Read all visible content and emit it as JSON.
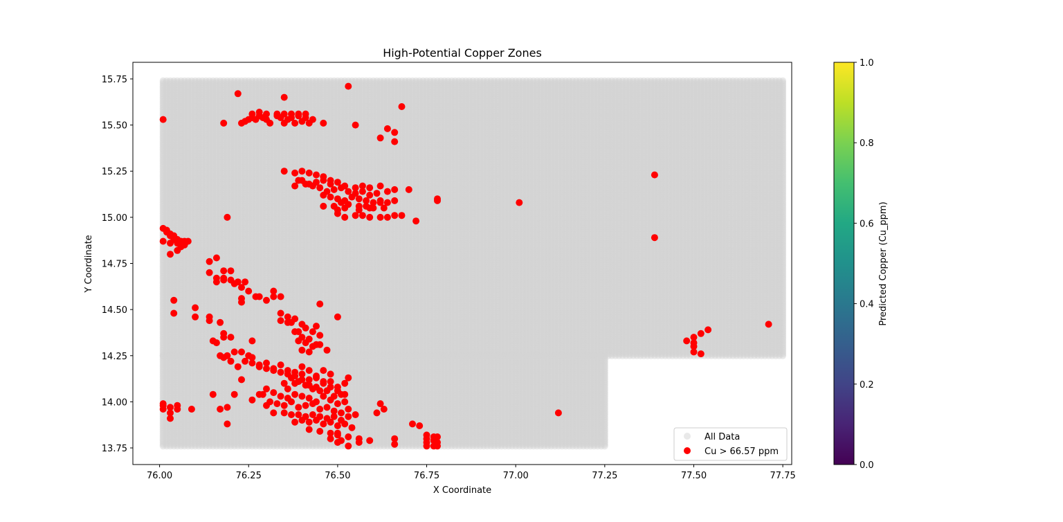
{
  "chart_data": {
    "type": "scatter",
    "title": "High-Potential Copper Zones",
    "xlabel": "X Coordinate",
    "ylabel": "Y Coordinate",
    "xlim": [
      75.925,
      77.775
    ],
    "ylim": [
      13.66,
      15.84
    ],
    "xticks": [
      76.0,
      76.25,
      76.5,
      76.75,
      77.0,
      77.25,
      77.5,
      77.75
    ],
    "xtick_labels": [
      "76.00",
      "76.25",
      "76.50",
      "76.75",
      "77.00",
      "77.25",
      "77.50",
      "77.75"
    ],
    "yticks": [
      13.75,
      14.0,
      14.25,
      14.5,
      14.75,
      15.0,
      15.25,
      15.5,
      15.75
    ],
    "ytick_labels": [
      "13.75",
      "14.00",
      "14.25",
      "14.50",
      "14.75",
      "15.00",
      "15.25",
      "15.50",
      "15.75"
    ],
    "grid": false,
    "legend_position": "lower-right",
    "colorbar": {
      "label": "Predicted Copper (Cu_ppm)",
      "colormap": "viridis",
      "range": [
        0.0,
        1.0
      ],
      "ticks": [
        0.0,
        0.2,
        0.4,
        0.6,
        0.8,
        1.0
      ],
      "tick_labels": [
        "0.0",
        "0.2",
        "0.4",
        "0.6",
        "0.8",
        "1.0"
      ]
    },
    "series": [
      {
        "name": "All Data",
        "color": "#d3d3d3",
        "coverage_note": "regular grid, spacing 0.01",
        "regions": [
          {
            "x": [
              76.01,
              77.75
            ],
            "y": [
              14.25,
              15.74
            ]
          },
          {
            "x": [
              76.01,
              77.25
            ],
            "y": [
              13.76,
              14.25
            ]
          }
        ]
      },
      {
        "name": "Cu > 66.57 ppm",
        "color": "#ff0000",
        "x": [
          76.01,
          76.22,
          76.35,
          76.53,
          76.68,
          76.55,
          76.62,
          76.64,
          76.66,
          76.66,
          76.18,
          76.23,
          76.24,
          76.25,
          76.26,
          76.27,
          76.28,
          76.29,
          76.3,
          76.31,
          76.33,
          76.34,
          76.35,
          76.36,
          76.37,
          76.38,
          76.39,
          76.4,
          76.41,
          76.42,
          76.26,
          76.28,
          76.3,
          76.33,
          76.35,
          76.37,
          76.39,
          76.41,
          76.43,
          76.46,
          76.35,
          76.38,
          76.4,
          76.42,
          76.44,
          76.46,
          76.48,
          76.38,
          76.4,
          76.42,
          76.44,
          76.46,
          76.48,
          76.5,
          76.52,
          76.55,
          76.57,
          76.59,
          76.62,
          76.39,
          76.41,
          76.43,
          76.45,
          76.47,
          76.49,
          76.51,
          76.53,
          76.55,
          76.57,
          76.59,
          76.61,
          76.64,
          76.66,
          76.7,
          76.46,
          76.48,
          76.5,
          76.52,
          76.54,
          76.56,
          76.58,
          76.6,
          76.62,
          76.64,
          76.66,
          76.46,
          76.49,
          76.51,
          76.53,
          76.56,
          76.58,
          76.6,
          76.63,
          76.5,
          76.52,
          76.55,
          76.57,
          76.59,
          76.62,
          76.5,
          76.52,
          76.56,
          76.59,
          76.62,
          76.64,
          76.66,
          76.68,
          76.72,
          76.78,
          76.78,
          77.01,
          77.39,
          77.39,
          76.19,
          76.01,
          76.02,
          76.03,
          76.04,
          76.05,
          76.06,
          76.07,
          76.08,
          76.01,
          76.02,
          76.03,
          76.04,
          76.05,
          76.06,
          76.07,
          76.03,
          76.05,
          76.03,
          76.14,
          76.16,
          76.18,
          76.2,
          76.14,
          76.16,
          76.18,
          76.2,
          76.22,
          76.24,
          76.16,
          76.18,
          76.21,
          76.23,
          76.25,
          76.28,
          76.3,
          76.32,
          76.34,
          76.27,
          76.32,
          76.23,
          76.23,
          76.45,
          76.04,
          76.04,
          76.1,
          76.1,
          76.14,
          76.14,
          76.17,
          76.34,
          76.34,
          76.36,
          76.36,
          76.38,
          76.4,
          76.37,
          76.39,
          76.41,
          76.43,
          76.45,
          76.38,
          76.4,
          76.42,
          76.44,
          76.39,
          76.41,
          76.43,
          76.45,
          76.4,
          76.42,
          76.47,
          76.5,
          76.44,
          76.18,
          76.2,
          76.26,
          76.16,
          76.18,
          76.15,
          76.17,
          76.19,
          76.21,
          76.23,
          76.25,
          76.18,
          76.2,
          76.22,
          76.24,
          76.26,
          76.28,
          76.3,
          76.32,
          76.34,
          76.36,
          76.38,
          76.4,
          76.42,
          76.44,
          76.46,
          76.48,
          76.53,
          76.26,
          76.28,
          76.3,
          76.32,
          76.34,
          76.36,
          76.38,
          76.4,
          76.42,
          76.44,
          76.46,
          76.48,
          76.5,
          76.52,
          76.36,
          76.38,
          76.4,
          76.42,
          76.44,
          76.46,
          76.48,
          76.5,
          76.52,
          76.21,
          76.23,
          76.35,
          76.37,
          76.39,
          76.41,
          76.43,
          76.45,
          76.47,
          76.49,
          76.51,
          76.26,
          76.28,
          76.3,
          76.32,
          76.34,
          76.36,
          76.38,
          76.4,
          76.42,
          76.44,
          76.46,
          76.48,
          76.5,
          76.52,
          76.19,
          76.29,
          76.31,
          76.33,
          76.35,
          76.37,
          76.39,
          76.41,
          76.43,
          76.45,
          76.47,
          76.49,
          76.51,
          76.53,
          76.55,
          76.63,
          76.01,
          76.03,
          76.05,
          76.01,
          76.03,
          76.05,
          76.01,
          76.03,
          76.09,
          76.15,
          76.17,
          76.3,
          76.32,
          76.35,
          76.37,
          76.39,
          76.41,
          76.43,
          76.45,
          76.47,
          76.49,
          76.51,
          76.53,
          76.61,
          76.38,
          76.4,
          76.42,
          76.44,
          76.46,
          76.48,
          76.5,
          76.52,
          76.54,
          76.62,
          76.19,
          76.42,
          76.45,
          76.48,
          76.5,
          76.53,
          76.56,
          76.48,
          76.5,
          76.53,
          76.56,
          76.59,
          76.66,
          76.5,
          76.51,
          76.66,
          76.71,
          76.73,
          76.75,
          76.75,
          76.75,
          76.75,
          76.77,
          76.77,
          76.77,
          76.78,
          76.78,
          76.78,
          77.12,
          77.48,
          77.5,
          77.5,
          77.5,
          77.5,
          77.52,
          77.52,
          77.54,
          77.71
        ],
        "y": [
          15.53,
          15.67,
          15.65,
          15.71,
          15.6,
          15.5,
          15.43,
          15.48,
          15.46,
          15.41,
          15.51,
          15.51,
          15.52,
          15.53,
          15.54,
          15.53,
          15.55,
          15.54,
          15.53,
          15.51,
          15.55,
          15.54,
          15.51,
          15.53,
          15.54,
          15.51,
          15.55,
          15.52,
          15.54,
          15.51,
          15.56,
          15.57,
          15.56,
          15.56,
          15.56,
          15.56,
          15.56,
          15.56,
          15.53,
          15.51,
          15.25,
          15.24,
          15.25,
          15.24,
          15.23,
          15.22,
          15.2,
          15.17,
          15.2,
          15.18,
          15.19,
          15.2,
          15.18,
          15.19,
          15.17,
          15.16,
          15.17,
          15.16,
          15.17,
          15.2,
          15.18,
          15.17,
          15.16,
          15.14,
          15.15,
          15.16,
          15.14,
          15.13,
          15.14,
          15.12,
          15.13,
          15.14,
          15.15,
          15.15,
          15.12,
          15.11,
          15.1,
          15.09,
          15.11,
          15.1,
          15.09,
          15.08,
          15.09,
          15.08,
          15.09,
          15.06,
          15.06,
          15.08,
          15.07,
          15.06,
          15.06,
          15.05,
          15.05,
          15.02,
          15.0,
          15.01,
          15.01,
          15.0,
          15.0,
          15.04,
          15.05,
          15.04,
          15.05,
          15.08,
          15.0,
          15.01,
          15.01,
          14.98,
          15.1,
          15.09,
          15.08,
          15.23,
          14.89,
          15.0,
          14.94,
          14.93,
          14.91,
          14.9,
          14.88,
          14.87,
          14.87,
          14.87,
          14.87,
          14.92,
          14.9,
          14.88,
          14.86,
          14.84,
          14.85,
          14.86,
          14.82,
          14.8,
          14.76,
          14.78,
          14.71,
          14.71,
          14.7,
          14.67,
          14.67,
          14.66,
          14.65,
          14.65,
          14.65,
          14.66,
          14.64,
          14.62,
          14.6,
          14.57,
          14.55,
          14.57,
          14.57,
          14.57,
          14.6,
          14.56,
          14.54,
          14.53,
          14.55,
          14.48,
          14.46,
          14.51,
          14.44,
          14.46,
          14.43,
          14.44,
          14.48,
          14.46,
          14.43,
          14.45,
          14.42,
          14.43,
          14.38,
          14.4,
          14.38,
          14.36,
          14.38,
          14.35,
          14.34,
          14.31,
          14.33,
          14.32,
          14.3,
          14.31,
          14.28,
          14.27,
          14.28,
          14.46,
          14.41,
          14.35,
          14.35,
          14.33,
          14.32,
          14.37,
          14.33,
          14.25,
          14.25,
          14.27,
          14.27,
          14.25,
          14.24,
          14.22,
          14.19,
          14.22,
          14.21,
          14.19,
          14.18,
          14.17,
          14.2,
          14.17,
          14.16,
          14.19,
          14.17,
          14.14,
          14.17,
          14.15,
          14.13,
          14.24,
          14.2,
          14.21,
          14.18,
          14.16,
          14.15,
          14.14,
          14.15,
          14.12,
          14.13,
          14.1,
          14.11,
          14.08,
          14.1,
          14.07,
          14.1,
          14.12,
          14.09,
          14.08,
          14.11,
          14.08,
          14.06,
          14.04,
          14.04,
          14.12,
          14.1,
          14.13,
          14.11,
          14.09,
          14.07,
          14.06,
          14.06,
          14.03,
          14.04,
          14.01,
          14.04,
          14.07,
          14.05,
          14.03,
          14.02,
          14.04,
          14.03,
          14.02,
          14.0,
          14.03,
          14.01,
          13.99,
          14.0,
          13.97,
          14.04,
          14.0,
          13.99,
          13.98,
          14.0,
          13.97,
          13.98,
          13.99,
          13.96,
          13.97,
          13.95,
          13.94,
          13.96,
          13.93,
          13.96,
          13.98,
          13.97,
          13.98,
          13.99,
          13.94,
          13.96,
          13.96,
          13.91,
          13.96,
          14.04,
          13.96,
          13.98,
          13.94,
          13.94,
          13.93,
          13.93,
          13.92,
          13.93,
          13.92,
          13.91,
          13.92,
          13.9,
          13.92,
          13.94,
          13.89,
          13.9,
          13.89,
          13.9,
          13.88,
          13.89,
          13.87,
          13.88,
          13.86,
          13.99,
          13.88,
          13.85,
          13.84,
          13.83,
          13.82,
          13.81,
          13.8,
          13.8,
          13.78,
          13.76,
          13.78,
          13.79,
          13.77,
          13.83,
          13.79,
          13.8,
          13.88,
          13.87,
          13.76,
          13.78,
          13.8,
          13.82,
          13.76,
          13.79,
          13.81,
          13.76,
          13.78,
          13.81,
          13.94,
          14.33,
          14.35,
          14.32,
          14.3,
          14.27,
          14.37,
          14.26,
          14.39,
          14.42
        ]
      }
    ]
  }
}
